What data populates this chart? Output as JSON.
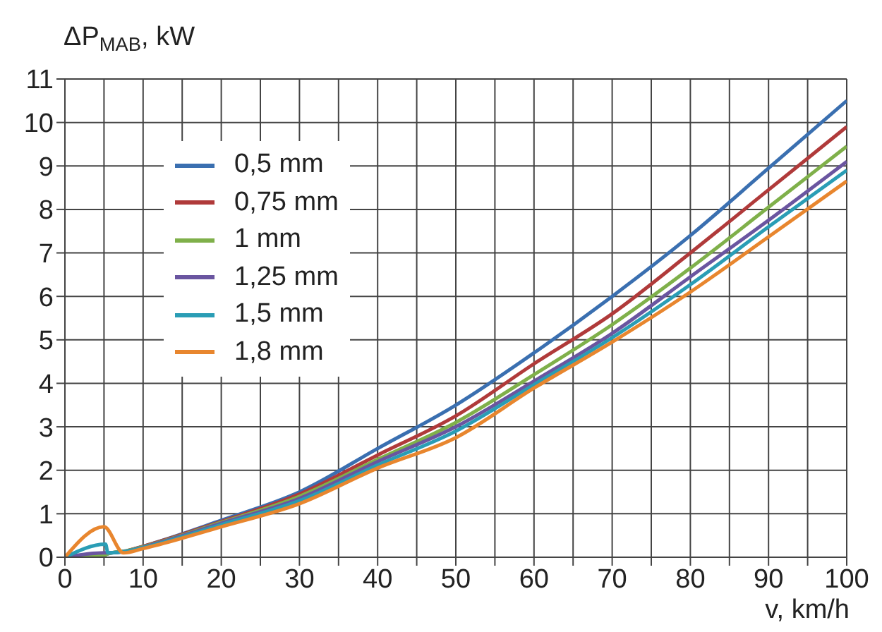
{
  "chart_data": {
    "type": "line",
    "ylabel": "ΔP$_{MAB}$, kW",
    "xlabel": "v, km/h",
    "xlim": [
      0,
      100
    ],
    "xticks": [
      0,
      {
        "value": 5,
        "label": null
      },
      10,
      {
        "value": 15,
        "label": null
      },
      20,
      {
        "value": 25,
        "label": null
      },
      30,
      {
        "value": 35,
        "label": null
      },
      40,
      {
        "value": 45,
        "label": null
      },
      50,
      {
        "value": 55,
        "label": null
      },
      60,
      {
        "value": 65,
        "label": null
      },
      70,
      {
        "value": 75,
        "label": null
      },
      80,
      {
        "value": 85,
        "label": null
      },
      90,
      {
        "value": 95,
        "label": null
      },
      100
    ],
    "ylim": [
      0,
      11
    ],
    "yticks": [
      0,
      1,
      2,
      3,
      4,
      5,
      6,
      7,
      8,
      9,
      10,
      11
    ],
    "grid": true,
    "legend": "top left",
    "marker": "none",
    "line_style": "solid",
    "series": [
      {
        "name": "0,5 mm",
        "color": "#3a6fb0",
        "x": [
          0,
          5,
          5.5,
          8,
          10,
          20,
          30,
          40,
          50,
          60,
          70,
          80,
          90,
          100
        ],
        "values": [
          0,
          0.05,
          0.08,
          0.15,
          0.25,
          0.85,
          1.5,
          2.5,
          3.5,
          4.7,
          6.0,
          7.4,
          8.95,
          10.5
        ]
      },
      {
        "name": "0,75 mm",
        "color": "#b03a3a",
        "x": [
          8,
          10,
          20,
          30,
          40,
          50,
          60,
          70,
          80,
          90,
          100
        ],
        "values": [
          0.15,
          0.25,
          0.82,
          1.45,
          2.35,
          3.25,
          4.45,
          5.6,
          7.0,
          8.45,
          9.9
        ]
      },
      {
        "name": "1 mm",
        "color": "#7fb04a",
        "x": [
          0,
          5,
          5.5,
          8,
          10,
          20,
          30,
          40,
          50,
          60,
          70,
          80,
          90,
          100
        ],
        "values": [
          0,
          0.05,
          0.08,
          0.15,
          0.24,
          0.8,
          1.4,
          2.25,
          3.1,
          4.2,
          5.35,
          6.65,
          8.05,
          9.45
        ]
      },
      {
        "name": "1,25 mm",
        "color": "#6a55a0",
        "x": [
          0,
          5,
          5.5,
          8,
          10,
          20,
          30,
          40,
          50,
          60,
          70,
          80,
          90,
          100
        ],
        "values": [
          0,
          0.1,
          0.1,
          0.14,
          0.23,
          0.78,
          1.35,
          2.2,
          3.0,
          4.05,
          5.15,
          6.45,
          7.75,
          9.1
        ]
      },
      {
        "name": "1,5 mm",
        "color": "#2a9db5",
        "x": [
          0,
          5.2,
          5.5,
          8,
          10,
          20,
          30,
          40,
          50,
          60,
          70,
          80,
          90,
          100
        ],
        "values": [
          0,
          0.3,
          0.1,
          0.14,
          0.22,
          0.75,
          1.3,
          2.12,
          2.9,
          3.97,
          5.05,
          6.27,
          7.6,
          8.9
        ]
      },
      {
        "name": "1,8 mm",
        "color": "#e8862e",
        "x": [
          0,
          5,
          7.5,
          10,
          20,
          30,
          40,
          50,
          60,
          70,
          80,
          90,
          100
        ],
        "values": [
          0,
          0.7,
          0.1,
          0.2,
          0.7,
          1.23,
          2.05,
          2.75,
          3.89,
          4.95,
          6.1,
          7.37,
          8.65
        ]
      }
    ]
  }
}
